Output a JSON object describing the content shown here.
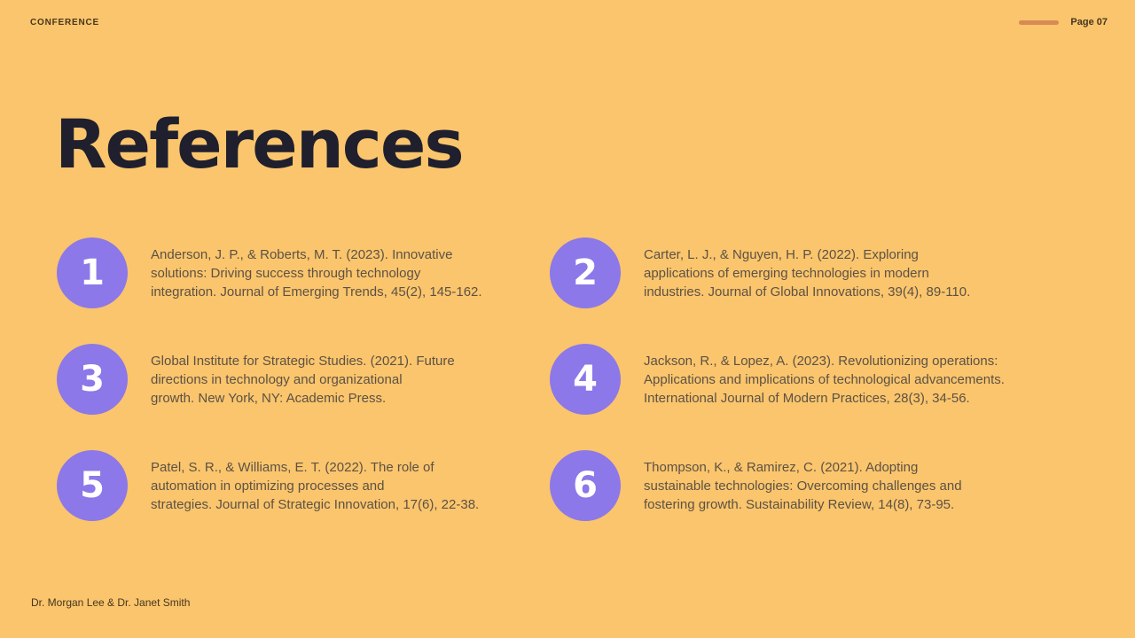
{
  "theme": {
    "background": "#FAC56C",
    "circle_color": "#8C78E8",
    "circle_number_color": "#FFFFFF",
    "title_color": "#1F1F2E",
    "body_text_color": "#5D5146",
    "meta_text_color": "#46361F",
    "accent_line_color": "#D88A52"
  },
  "header": {
    "brand": "CONFERENCE",
    "page_label": "Page 07"
  },
  "title": "References",
  "references": [
    {
      "number": "1",
      "lines": [
        "Anderson, J. P., & Roberts, M. T. (2023). Innovative",
        "solutions: Driving success through technology",
        "integration. Journal of Emerging Trends, 45(2), 145-162."
      ]
    },
    {
      "number": "2",
      "lines": [
        "Carter, L. J., & Nguyen, H. P. (2022). Exploring",
        "applications of emerging technologies in modern",
        "industries. Journal of Global Innovations, 39(4), 89-110."
      ]
    },
    {
      "number": "3",
      "lines": [
        "Global Institute for Strategic Studies. (2021). Future",
        "directions in technology and organizational",
        "growth. New York, NY: Academic Press."
      ]
    },
    {
      "number": "4",
      "lines": [
        "Jackson, R., & Lopez, A. (2023). Revolutionizing operations:",
        "Applications and implications of technological advancements.",
        "International Journal of Modern Practices, 28(3), 34-56."
      ]
    },
    {
      "number": "5",
      "lines": [
        "Patel, S. R., & Williams, E. T. (2022). The role of",
        "automation in optimizing processes and",
        "strategies. Journal of Strategic Innovation, 17(6), 22-38."
      ]
    },
    {
      "number": "6",
      "lines": [
        "Thompson, K., & Ramirez, C. (2021). Adopting",
        "sustainable technologies: Overcoming challenges and",
        "fostering growth. Sustainability Review, 14(8), 73-95."
      ]
    }
  ],
  "footer": {
    "authors": "Dr. Morgan Lee & Dr. Janet Smith"
  }
}
